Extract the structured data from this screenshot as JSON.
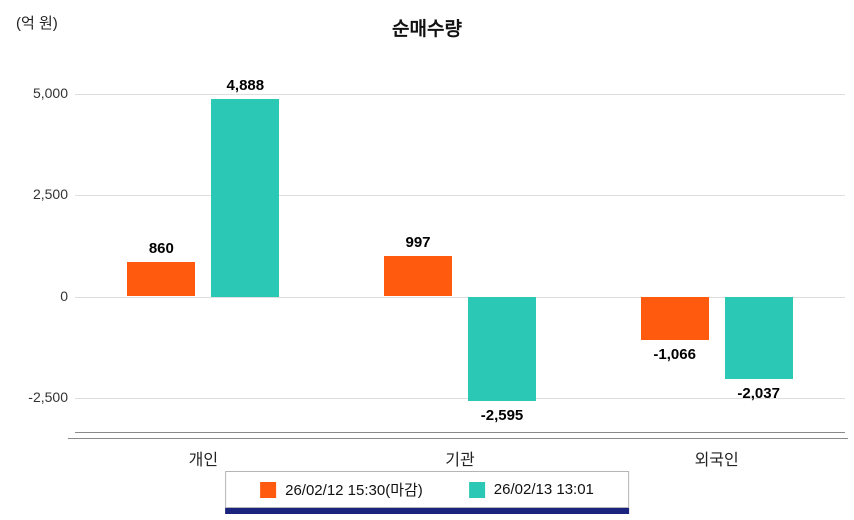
{
  "chart_data": {
    "type": "bar",
    "title": "순매수량",
    "unit_label": "(억 원)",
    "categories": [
      "개인",
      "기관",
      "외국인"
    ],
    "series": [
      {
        "name": "26/02/12 15:30(마감)",
        "color": "#FF5A0E",
        "values": [
          860,
          997,
          -1066
        ]
      },
      {
        "name": "26/02/13 13:01",
        "color": "#2AC8B5",
        "values": [
          4888,
          -2595,
          -2037
        ]
      }
    ],
    "value_labels": [
      [
        "860",
        "997",
        "-1,066"
      ],
      [
        "4,888",
        "-2,595",
        "-2,037"
      ]
    ],
    "yticks": [
      5000,
      2500,
      0,
      -2500
    ],
    "ytick_labels": [
      "5,000",
      "2,500",
      "0",
      "-2,500"
    ],
    "ylim": [
      -3350,
      5600
    ],
    "grid": true,
    "legend_position": "bottom",
    "xlabel": "",
    "ylabel": "(억 원)"
  },
  "colors": {
    "grid": "#dedede",
    "axis": "#8a8a8a",
    "legend_underline": "#1A237E",
    "text": "#111111"
  }
}
